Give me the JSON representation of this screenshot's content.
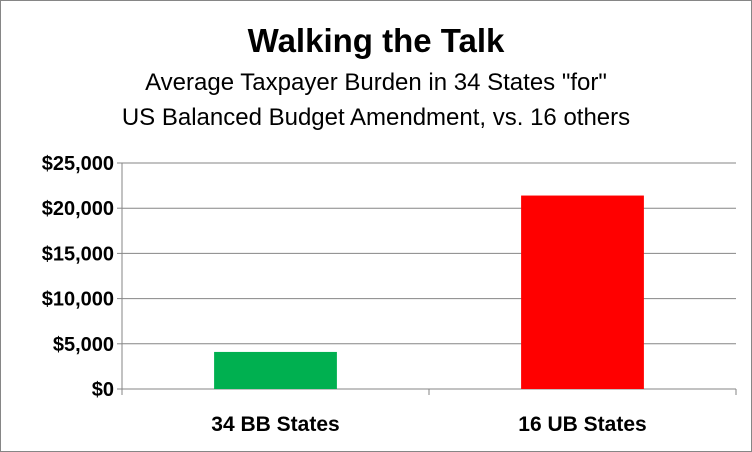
{
  "chart_data": {
    "type": "bar",
    "title": "Walking the Talk",
    "subtitle_lines": [
      "Average Taxpayer Burden in 34 States \"for\"",
      "US Balanced Budget Amendment, vs. 16 others"
    ],
    "categories": [
      "34 BB States",
      "16 UB States"
    ],
    "values": [
      4100,
      21400
    ],
    "bar_colors": [
      "#00b050",
      "#ff0000"
    ],
    "ylim": [
      0,
      25000
    ],
    "y_ticks": [
      0,
      5000,
      10000,
      15000,
      20000,
      25000
    ],
    "y_tick_labels": [
      "$0",
      "$5,000",
      "$10,000",
      "$15,000",
      "$20,000",
      "$25,000"
    ],
    "grid": true,
    "legend": "none",
    "xlabel": "",
    "ylabel": ""
  }
}
